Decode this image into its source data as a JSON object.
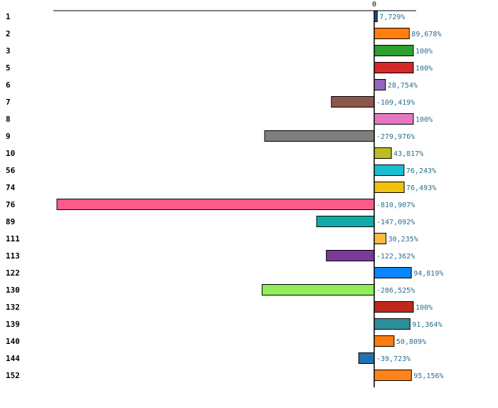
{
  "chart_data": {
    "type": "bar",
    "orientation": "horizontal",
    "title": "",
    "xlabel": "",
    "ylabel": "",
    "zero_tick_label": "0",
    "grid": false,
    "xlim": [
      -830,
      100
    ],
    "categories": [
      "1",
      "2",
      "3",
      "5",
      "6",
      "7",
      "8",
      "9",
      "10",
      "56",
      "74",
      "76",
      "89",
      "111",
      "113",
      "122",
      "130",
      "132",
      "139",
      "140",
      "144",
      "152"
    ],
    "values": [
      7.729,
      89.678,
      100,
      100,
      28.754,
      -109.419,
      100,
      -279.976,
      43.817,
      76.243,
      76.493,
      -810.907,
      -147.092,
      30.235,
      -122.362,
      94.819,
      -286.525,
      100,
      91.364,
      50.809,
      -39.723,
      95.156
    ],
    "value_labels": [
      "7,729%",
      "89,678%",
      "100%",
      "100%",
      "28,754%",
      "-109,419%",
      "100%",
      "-279,976%",
      "43,817%",
      "76,243%",
      "76,493%",
      "-810,907%",
      "-147,092%",
      "30,235%",
      "-122,362%",
      "94,819%",
      "-286,525%",
      "100%",
      "91,364%",
      "50,809%",
      "-39,723%",
      "95,156%"
    ],
    "colors": [
      "#1f4e8c",
      "#ff7f0e",
      "#2ca02c",
      "#d62728",
      "#9467bd",
      "#8c564b",
      "#e377c2",
      "#7f7f7f",
      "#bcbd22",
      "#17becf",
      "#f0c20e",
      "#ff5a8c",
      "#12aaa8",
      "#ffb93d",
      "#7a3a9a",
      "#0a84ff",
      "#90ee5a",
      "#c0281e",
      "#2e8f9b",
      "#ff7a0e",
      "#2371b3",
      "#ff8418"
    ]
  }
}
